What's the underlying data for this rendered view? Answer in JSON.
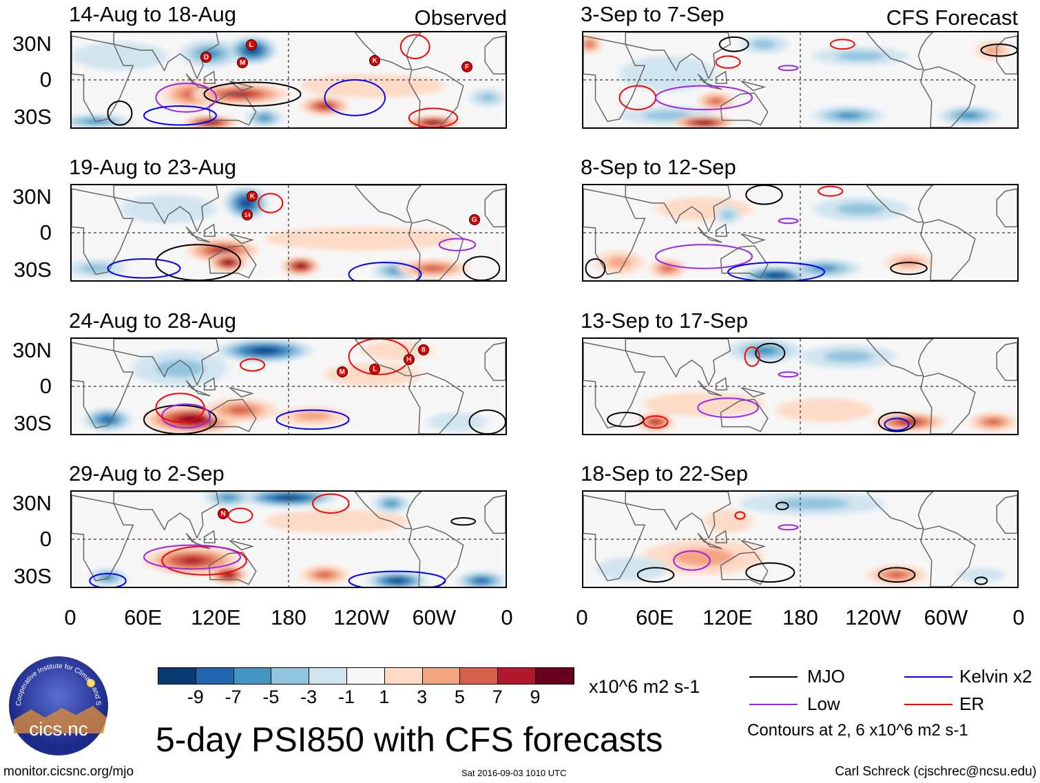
{
  "header": {
    "observed_label": "Observed",
    "forecast_label": "CFS Forecast"
  },
  "lat_labels": [
    "30N",
    "0",
    "30S"
  ],
  "lon_labels": [
    "0",
    "60E",
    "120E",
    "180",
    "120W",
    "60W",
    "0"
  ],
  "colorbar": {
    "colors": [
      "#0a3a72",
      "#2166ac",
      "#4393c3",
      "#92c5de",
      "#d1e5f0",
      "#f7f7f7",
      "#fddbc7",
      "#f4a582",
      "#d6604d",
      "#b2182b",
      "#67001f"
    ],
    "labels": [
      "-9",
      "-7",
      "-5",
      "-3",
      "-1",
      "1",
      "3",
      "5",
      "7",
      "9"
    ],
    "units": "x10^6 m2 s-1"
  },
  "legend": {
    "items": [
      {
        "label": "MJO",
        "color": "#000000"
      },
      {
        "label": "Kelvin x2",
        "color": "#0000ff"
      },
      {
        "label": "Low",
        "color": "#a020f0"
      },
      {
        "label": "ER",
        "color": "#ff0000"
      }
    ],
    "note": "Contours at 2, 6 x10^6 m2 s-1"
  },
  "title": "5-day PSI850 with CFS forecasts",
  "footer": {
    "url": "monitor.cicsnc.org/mjo",
    "timestamp": "Sat 2016-09-03 1010 UTC",
    "author": "Carl Schreck (cjschrec@ncsu.edu)"
  },
  "logo": {
    "text": "cics.nc",
    "ring_text": "Cooperative Institute for Climate and Satellites"
  },
  "chart_data": {
    "type": "heatmap",
    "title": "5-day PSI850 with CFS forecasts",
    "xlim": [
      0,
      360
    ],
    "ylim": [
      -40,
      40
    ],
    "blob_format": "[lon, lat, lon_radius, lat_radius, value]",
    "contour_format": "[type, lon, lat, lon_radius, lat_radius]",
    "observed": [
      {
        "title": "14-Aug to 18-Aug",
        "blobs": [
          [
            40,
            20,
            40,
            12,
            -2
          ],
          [
            115,
            22,
            25,
            12,
            -5
          ],
          [
            150,
            25,
            20,
            12,
            -10
          ],
          [
            20,
            -35,
            30,
            6,
            -5
          ],
          [
            160,
            -32,
            15,
            8,
            -5
          ],
          [
            250,
            -5,
            60,
            10,
            2
          ],
          [
            100,
            -12,
            25,
            12,
            5
          ],
          [
            140,
            -12,
            40,
            9,
            7
          ],
          [
            210,
            -22,
            20,
            8,
            7
          ],
          [
            115,
            -36,
            22,
            6,
            9
          ],
          [
            300,
            -36,
            22,
            6,
            9
          ],
          [
            345,
            -15,
            15,
            8,
            -3
          ]
        ],
        "contours": [
          [
            "MJO",
            150,
            -12,
            40,
            10
          ],
          [
            "Low",
            95,
            -15,
            25,
            12
          ],
          [
            "Kelvin",
            90,
            -30,
            30,
            8
          ],
          [
            "Kelvin",
            235,
            -15,
            25,
            15
          ],
          [
            "ER",
            285,
            28,
            12,
            10
          ],
          [
            "MJO",
            40,
            -28,
            10,
            10
          ],
          [
            "ER",
            300,
            -32,
            20,
            8
          ]
        ],
        "storms": [
          [
            "D",
            111,
            20
          ],
          [
            "L",
            148,
            30
          ],
          [
            "M",
            141,
            15
          ],
          [
            "K",
            250,
            17
          ],
          [
            "F",
            326,
            12
          ]
        ]
      },
      {
        "title": "19-Aug to 23-Aug",
        "blobs": [
          [
            145,
            25,
            18,
            14,
            -9
          ],
          [
            80,
            20,
            40,
            12,
            -2
          ],
          [
            240,
            -5,
            80,
            10,
            2
          ],
          [
            125,
            -15,
            30,
            10,
            7
          ],
          [
            130,
            -25,
            15,
            8,
            9
          ],
          [
            190,
            -28,
            15,
            8,
            9
          ],
          [
            270,
            -32,
            20,
            8,
            -5
          ],
          [
            300,
            -30,
            30,
            8,
            5
          ],
          [
            20,
            -30,
            25,
            8,
            -3
          ]
        ],
        "contours": [
          [
            "MJO",
            105,
            -25,
            35,
            15
          ],
          [
            "ER",
            165,
            25,
            10,
            8
          ],
          [
            "Low",
            320,
            -10,
            15,
            5
          ],
          [
            "Kelvin",
            60,
            -30,
            30,
            8
          ],
          [
            "MJO",
            340,
            -30,
            15,
            10
          ],
          [
            "Kelvin",
            260,
            -35,
            30,
            10
          ]
        ],
        "storms": [
          [
            "K",
            149,
            31
          ],
          [
            "14",
            145,
            16
          ],
          [
            "G",
            332,
            12
          ]
        ]
      },
      {
        "title": "24-Aug to 28-Aug",
        "blobs": [
          [
            160,
            30,
            40,
            10,
            -9
          ],
          [
            90,
            15,
            40,
            15,
            -3
          ],
          [
            30,
            -28,
            20,
            10,
            -7
          ],
          [
            100,
            -28,
            40,
            12,
            9
          ],
          [
            140,
            -20,
            30,
            10,
            5
          ],
          [
            250,
            10,
            40,
            10,
            2
          ],
          [
            270,
            30,
            30,
            8,
            2
          ],
          [
            320,
            -30,
            25,
            8,
            -2
          ],
          [
            200,
            -25,
            30,
            8,
            3
          ]
        ],
        "contours": [
          [
            "MJO",
            90,
            -28,
            30,
            12
          ],
          [
            "Low",
            95,
            -25,
            20,
            10
          ],
          [
            "ER",
            90,
            -18,
            20,
            12
          ],
          [
            "ER",
            255,
            25,
            25,
            15
          ],
          [
            "ER",
            150,
            18,
            10,
            5
          ],
          [
            "Kelvin",
            200,
            -28,
            30,
            8
          ],
          [
            "MJO",
            345,
            -30,
            15,
            10
          ]
        ],
        "storms": [
          [
            "M",
            223,
            13
          ],
          [
            "L",
            250,
            15
          ],
          [
            "H",
            278,
            23
          ],
          [
            "8",
            290,
            31
          ]
        ]
      },
      {
        "title": "29-Aug to 2-Sep",
        "blobs": [
          [
            180,
            35,
            40,
            8,
            -10
          ],
          [
            130,
            35,
            20,
            8,
            -5
          ],
          [
            270,
            -35,
            25,
            8,
            -9
          ],
          [
            340,
            -35,
            20,
            8,
            -7
          ],
          [
            30,
            -32,
            15,
            8,
            -6
          ],
          [
            100,
            -18,
            40,
            12,
            7
          ],
          [
            130,
            -30,
            15,
            8,
            9
          ],
          [
            210,
            -30,
            20,
            8,
            5
          ],
          [
            220,
            15,
            60,
            10,
            2
          ],
          [
            265,
            30,
            15,
            8,
            -5
          ]
        ],
        "contours": [
          [
            "ER",
            110,
            -18,
            35,
            12
          ],
          [
            "Low",
            100,
            -15,
            40,
            10
          ],
          [
            "ER",
            140,
            20,
            10,
            6
          ],
          [
            "ER",
            215,
            30,
            15,
            8
          ],
          [
            "MJO",
            325,
            15,
            10,
            3
          ],
          [
            "Kelvin",
            30,
            -35,
            15,
            6
          ],
          [
            "Kelvin",
            270,
            -35,
            40,
            8
          ]
        ],
        "storms": [
          [
            "N",
            125,
            22
          ]
        ]
      }
    ],
    "forecast": [
      {
        "title": "3-Sep to 7-Sep",
        "blobs": [
          [
            150,
            30,
            20,
            8,
            -4
          ],
          [
            70,
            -30,
            40,
            8,
            -3
          ],
          [
            100,
            -36,
            25,
            6,
            9
          ],
          [
            70,
            5,
            40,
            15,
            -2
          ],
          [
            220,
            -30,
            30,
            8,
            -5
          ],
          [
            320,
            -30,
            25,
            8,
            -5
          ],
          [
            230,
            20,
            40,
            8,
            -3
          ],
          [
            340,
            25,
            15,
            8,
            3
          ],
          [
            110,
            -18,
            15,
            8,
            5
          ],
          [
            5,
            30,
            10,
            8,
            5
          ]
        ],
        "contours": [
          [
            "MJO",
            125,
            30,
            12,
            6
          ],
          [
            "ER",
            120,
            15,
            10,
            5
          ],
          [
            "ER",
            45,
            -15,
            15,
            10
          ],
          [
            "Low",
            100,
            -15,
            40,
            10
          ],
          [
            "Low",
            170,
            10,
            8,
            2
          ],
          [
            "MJO",
            345,
            25,
            15,
            5
          ],
          [
            "ER",
            215,
            30,
            10,
            4
          ]
        ],
        "storms": []
      },
      {
        "title": "8-Sep to 12-Sep",
        "blobs": [
          [
            160,
            -36,
            30,
            8,
            -9
          ],
          [
            200,
            -30,
            30,
            8,
            -5
          ],
          [
            230,
            20,
            40,
            10,
            -3
          ],
          [
            30,
            -25,
            20,
            10,
            3
          ],
          [
            70,
            -30,
            15,
            8,
            5
          ],
          [
            100,
            20,
            40,
            10,
            2
          ],
          [
            270,
            -25,
            20,
            8,
            3
          ],
          [
            120,
            15,
            10,
            8,
            -3
          ]
        ],
        "contours": [
          [
            "MJO",
            150,
            32,
            15,
            8
          ],
          [
            "MJO",
            10,
            -30,
            8,
            8
          ],
          [
            "Low",
            100,
            -20,
            40,
            10
          ],
          [
            "Low",
            170,
            10,
            8,
            2
          ],
          [
            "Kelvin",
            160,
            -33,
            40,
            8
          ],
          [
            "MJO",
            270,
            -30,
            15,
            5
          ],
          [
            "ER",
            205,
            35,
            10,
            4
          ]
        ],
        "storms": []
      },
      {
        "title": "13-Sep to 17-Sep",
        "blobs": [
          [
            60,
            -30,
            15,
            8,
            7
          ],
          [
            150,
            30,
            30,
            10,
            -5
          ],
          [
            220,
            25,
            40,
            10,
            -3
          ],
          [
            270,
            -30,
            30,
            8,
            7
          ],
          [
            340,
            -30,
            20,
            8,
            5
          ],
          [
            100,
            -15,
            50,
            10,
            2
          ],
          [
            200,
            -20,
            40,
            10,
            2
          ]
        ],
        "contours": [
          [
            "MJO",
            35,
            -28,
            15,
            6
          ],
          [
            "ER",
            60,
            -30,
            10,
            5
          ],
          [
            "Low",
            120,
            -18,
            25,
            8
          ],
          [
            "MJO",
            155,
            28,
            12,
            8
          ],
          [
            "ER",
            140,
            25,
            6,
            8
          ],
          [
            "Low",
            170,
            10,
            8,
            2
          ],
          [
            "MJO",
            260,
            -30,
            15,
            8
          ],
          [
            "Kelvin",
            260,
            -32,
            10,
            5
          ]
        ],
        "storms": []
      },
      {
        "title": "18-Sep to 22-Sep",
        "blobs": [
          [
            190,
            30,
            60,
            10,
            -4
          ],
          [
            100,
            -15,
            50,
            15,
            3
          ],
          [
            260,
            -30,
            25,
            8,
            6
          ],
          [
            120,
            15,
            20,
            10,
            2
          ],
          [
            40,
            -25,
            30,
            10,
            -2
          ],
          [
            330,
            -30,
            20,
            6,
            -2
          ]
        ],
        "contours": [
          [
            "MJO",
            60,
            -30,
            15,
            6
          ],
          [
            "Low",
            90,
            -18,
            15,
            8
          ],
          [
            "MJO",
            155,
            -28,
            20,
            8
          ],
          [
            "Low",
            170,
            10,
            8,
            2
          ],
          [
            "ER",
            130,
            20,
            4,
            3
          ],
          [
            "MJO",
            165,
            28,
            5,
            3
          ],
          [
            "MJO",
            260,
            -30,
            15,
            6
          ],
          [
            "MJO",
            330,
            -35,
            5,
            3
          ]
        ],
        "storms": []
      }
    ]
  }
}
